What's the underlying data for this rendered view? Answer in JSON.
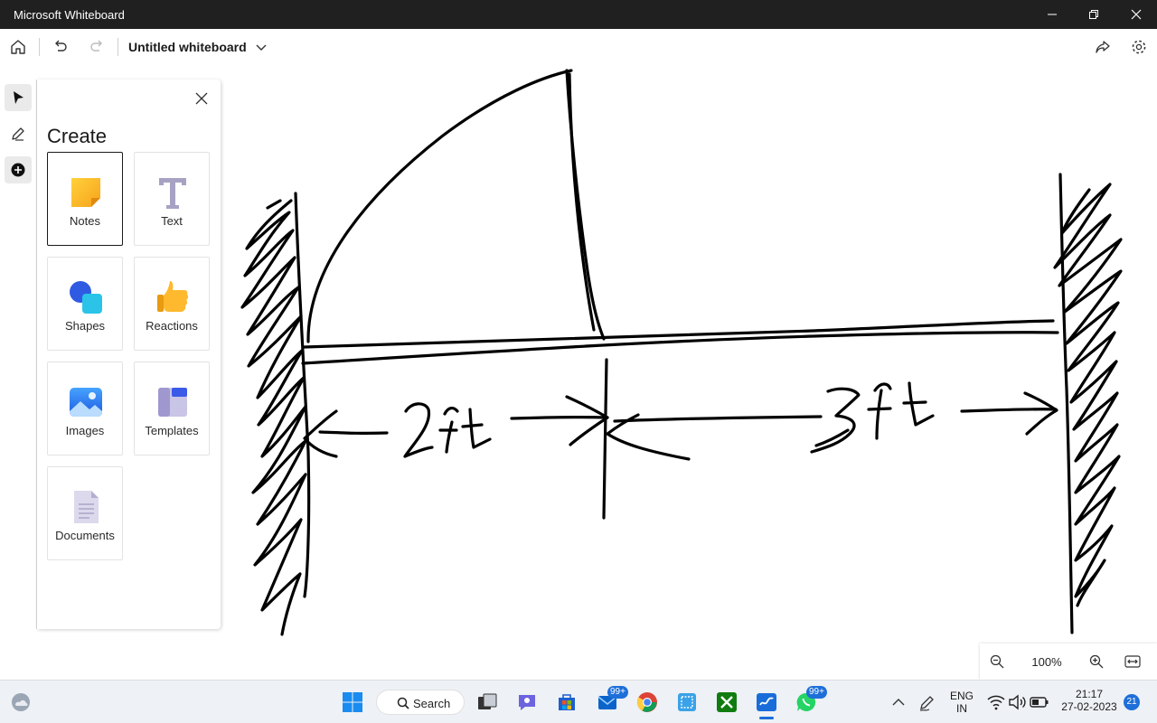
{
  "window": {
    "title": "Microsoft Whiteboard"
  },
  "toolbar": {
    "board_title": "Untitled whiteboard"
  },
  "create_panel": {
    "heading": "Create",
    "tiles": [
      {
        "label": "Notes",
        "icon": "sticky-note-icon",
        "selected": true
      },
      {
        "label": "Text",
        "icon": "text-icon"
      },
      {
        "label": "Shapes",
        "icon": "shapes-icon"
      },
      {
        "label": "Reactions",
        "icon": "thumbs-up-icon"
      },
      {
        "label": "Images",
        "icon": "image-icon"
      },
      {
        "label": "Templates",
        "icon": "templates-icon"
      },
      {
        "label": "Documents",
        "icon": "document-icon"
      }
    ]
  },
  "drawing": {
    "left_dimension": "2ft",
    "right_dimension": "3ft",
    "ink_color": "#000000"
  },
  "zoom": {
    "level": "100%"
  },
  "taskbar": {
    "search_label": "Search",
    "mail_badge": "99+",
    "whatsapp_badge": "99+",
    "language_top": "ENG",
    "language_bottom": "IN",
    "time": "21:17",
    "date": "27-02-2023",
    "notification_count": "21"
  }
}
